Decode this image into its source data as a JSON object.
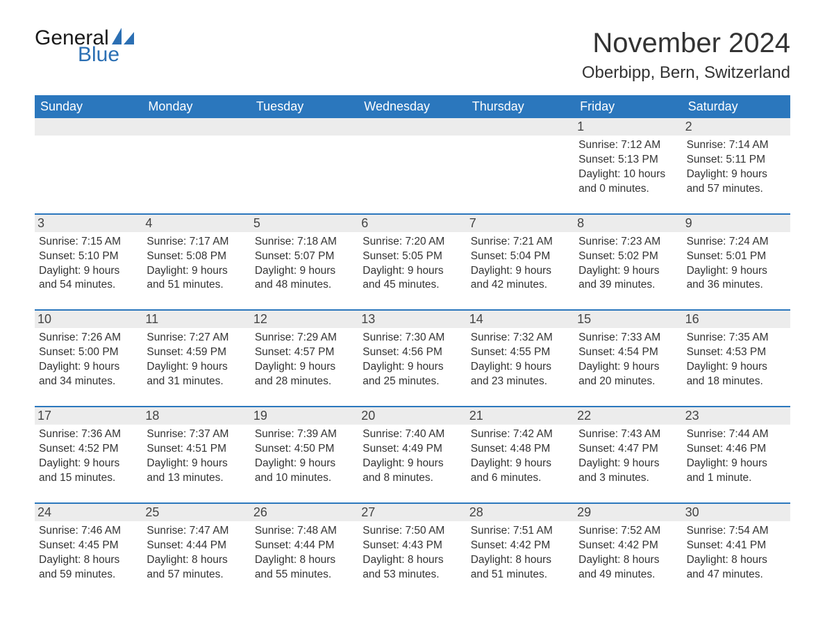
{
  "brand": {
    "word1": "General",
    "word2": "Blue",
    "word1_color": "#1a1a1a",
    "word2_color": "#2b6fb3",
    "sail_color": "#2b6fb3"
  },
  "title": "November 2024",
  "location": "Oberbipp, Bern, Switzerland",
  "colors": {
    "header_bg": "#2b77bd",
    "header_text": "#ffffff",
    "daynum_bg": "#ececec",
    "row_border": "#2b77bd",
    "text": "#333333",
    "background": "#ffffff"
  },
  "typography": {
    "title_fontsize": 40,
    "location_fontsize": 24,
    "dow_fontsize": 18,
    "daynum_fontsize": 18,
    "body_fontsize": 15.5
  },
  "layout": {
    "columns": 7,
    "rows": 5,
    "aspect_width": 1188,
    "aspect_height": 918
  },
  "days_of_week": [
    "Sunday",
    "Monday",
    "Tuesday",
    "Wednesday",
    "Thursday",
    "Friday",
    "Saturday"
  ],
  "weeks": [
    [
      null,
      null,
      null,
      null,
      null,
      {
        "n": 1,
        "sunrise": "7:12 AM",
        "sunset": "5:13 PM",
        "daylight": "10 hours and 0 minutes."
      },
      {
        "n": 2,
        "sunrise": "7:14 AM",
        "sunset": "5:11 PM",
        "daylight": "9 hours and 57 minutes."
      }
    ],
    [
      {
        "n": 3,
        "sunrise": "7:15 AM",
        "sunset": "5:10 PM",
        "daylight": "9 hours and 54 minutes."
      },
      {
        "n": 4,
        "sunrise": "7:17 AM",
        "sunset": "5:08 PM",
        "daylight": "9 hours and 51 minutes."
      },
      {
        "n": 5,
        "sunrise": "7:18 AM",
        "sunset": "5:07 PM",
        "daylight": "9 hours and 48 minutes."
      },
      {
        "n": 6,
        "sunrise": "7:20 AM",
        "sunset": "5:05 PM",
        "daylight": "9 hours and 45 minutes."
      },
      {
        "n": 7,
        "sunrise": "7:21 AM",
        "sunset": "5:04 PM",
        "daylight": "9 hours and 42 minutes."
      },
      {
        "n": 8,
        "sunrise": "7:23 AM",
        "sunset": "5:02 PM",
        "daylight": "9 hours and 39 minutes."
      },
      {
        "n": 9,
        "sunrise": "7:24 AM",
        "sunset": "5:01 PM",
        "daylight": "9 hours and 36 minutes."
      }
    ],
    [
      {
        "n": 10,
        "sunrise": "7:26 AM",
        "sunset": "5:00 PM",
        "daylight": "9 hours and 34 minutes."
      },
      {
        "n": 11,
        "sunrise": "7:27 AM",
        "sunset": "4:59 PM",
        "daylight": "9 hours and 31 minutes."
      },
      {
        "n": 12,
        "sunrise": "7:29 AM",
        "sunset": "4:57 PM",
        "daylight": "9 hours and 28 minutes."
      },
      {
        "n": 13,
        "sunrise": "7:30 AM",
        "sunset": "4:56 PM",
        "daylight": "9 hours and 25 minutes."
      },
      {
        "n": 14,
        "sunrise": "7:32 AM",
        "sunset": "4:55 PM",
        "daylight": "9 hours and 23 minutes."
      },
      {
        "n": 15,
        "sunrise": "7:33 AM",
        "sunset": "4:54 PM",
        "daylight": "9 hours and 20 minutes."
      },
      {
        "n": 16,
        "sunrise": "7:35 AM",
        "sunset": "4:53 PM",
        "daylight": "9 hours and 18 minutes."
      }
    ],
    [
      {
        "n": 17,
        "sunrise": "7:36 AM",
        "sunset": "4:52 PM",
        "daylight": "9 hours and 15 minutes."
      },
      {
        "n": 18,
        "sunrise": "7:37 AM",
        "sunset": "4:51 PM",
        "daylight": "9 hours and 13 minutes."
      },
      {
        "n": 19,
        "sunrise": "7:39 AM",
        "sunset": "4:50 PM",
        "daylight": "9 hours and 10 minutes."
      },
      {
        "n": 20,
        "sunrise": "7:40 AM",
        "sunset": "4:49 PM",
        "daylight": "9 hours and 8 minutes."
      },
      {
        "n": 21,
        "sunrise": "7:42 AM",
        "sunset": "4:48 PM",
        "daylight": "9 hours and 6 minutes."
      },
      {
        "n": 22,
        "sunrise": "7:43 AM",
        "sunset": "4:47 PM",
        "daylight": "9 hours and 3 minutes."
      },
      {
        "n": 23,
        "sunrise": "7:44 AM",
        "sunset": "4:46 PM",
        "daylight": "9 hours and 1 minute."
      }
    ],
    [
      {
        "n": 24,
        "sunrise": "7:46 AM",
        "sunset": "4:45 PM",
        "daylight": "8 hours and 59 minutes."
      },
      {
        "n": 25,
        "sunrise": "7:47 AM",
        "sunset": "4:44 PM",
        "daylight": "8 hours and 57 minutes."
      },
      {
        "n": 26,
        "sunrise": "7:48 AM",
        "sunset": "4:44 PM",
        "daylight": "8 hours and 55 minutes."
      },
      {
        "n": 27,
        "sunrise": "7:50 AM",
        "sunset": "4:43 PM",
        "daylight": "8 hours and 53 minutes."
      },
      {
        "n": 28,
        "sunrise": "7:51 AM",
        "sunset": "4:42 PM",
        "daylight": "8 hours and 51 minutes."
      },
      {
        "n": 29,
        "sunrise": "7:52 AM",
        "sunset": "4:42 PM",
        "daylight": "8 hours and 49 minutes."
      },
      {
        "n": 30,
        "sunrise": "7:54 AM",
        "sunset": "4:41 PM",
        "daylight": "8 hours and 47 minutes."
      }
    ]
  ],
  "labels": {
    "sunrise": "Sunrise:",
    "sunset": "Sunset:",
    "daylight": "Daylight:"
  }
}
